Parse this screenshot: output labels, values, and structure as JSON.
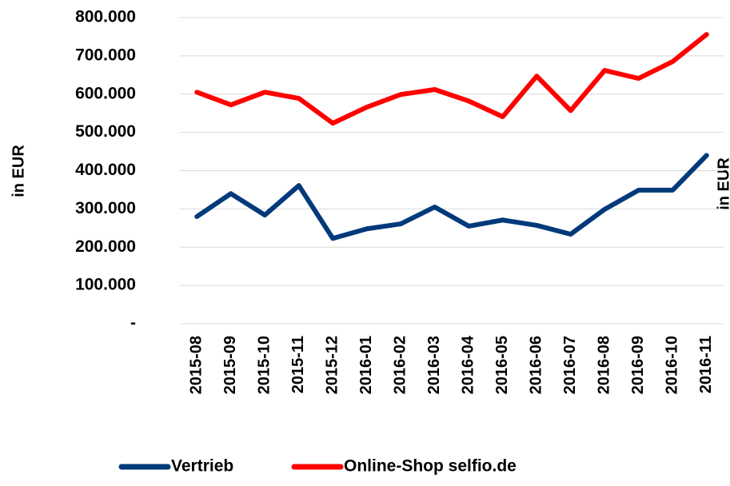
{
  "chart_data": {
    "type": "line",
    "y_label": "in EUR",
    "y2_label": "in EUR",
    "categories": [
      "2015-08",
      "2015-09",
      "2015-10",
      "2015-11",
      "2015-12",
      "2016-01",
      "2016-02",
      "2016-03",
      "2016-04",
      "2016-05",
      "2016-06",
      "2016-07",
      "2016-08",
      "2016-09",
      "2016-10",
      "2016-11"
    ],
    "series": [
      {
        "name": "Vertrieb",
        "color": "#003a7a",
        "values": [
          280000,
          340000,
          284000,
          361000,
          223000,
          248000,
          261000,
          305000,
          255000,
          271000,
          257000,
          234000,
          299000,
          349000,
          349000,
          440000
        ]
      },
      {
        "name": "Online-Shop selfio.de",
        "color": "#ff0000",
        "values": [
          605000,
          572000,
          605000,
          589000,
          524000,
          566000,
          599000,
          612000,
          582000,
          541000,
          647000,
          557000,
          662000,
          641000,
          685000,
          756000
        ]
      }
    ],
    "ylim": [
      0,
      800000
    ],
    "yticks": [
      {
        "value": 0,
        "label": "-"
      },
      {
        "value": 100000,
        "label": "100.000"
      },
      {
        "value": 200000,
        "label": "200.000"
      },
      {
        "value": 300000,
        "label": "300.000"
      },
      {
        "value": 400000,
        "label": "400.000"
      },
      {
        "value": 500000,
        "label": "500.000"
      },
      {
        "value": 600000,
        "label": "600.000"
      },
      {
        "value": 700000,
        "label": "700.000"
      },
      {
        "value": 800000,
        "label": "800.000"
      }
    ],
    "grid": true,
    "legend": "bottom"
  }
}
